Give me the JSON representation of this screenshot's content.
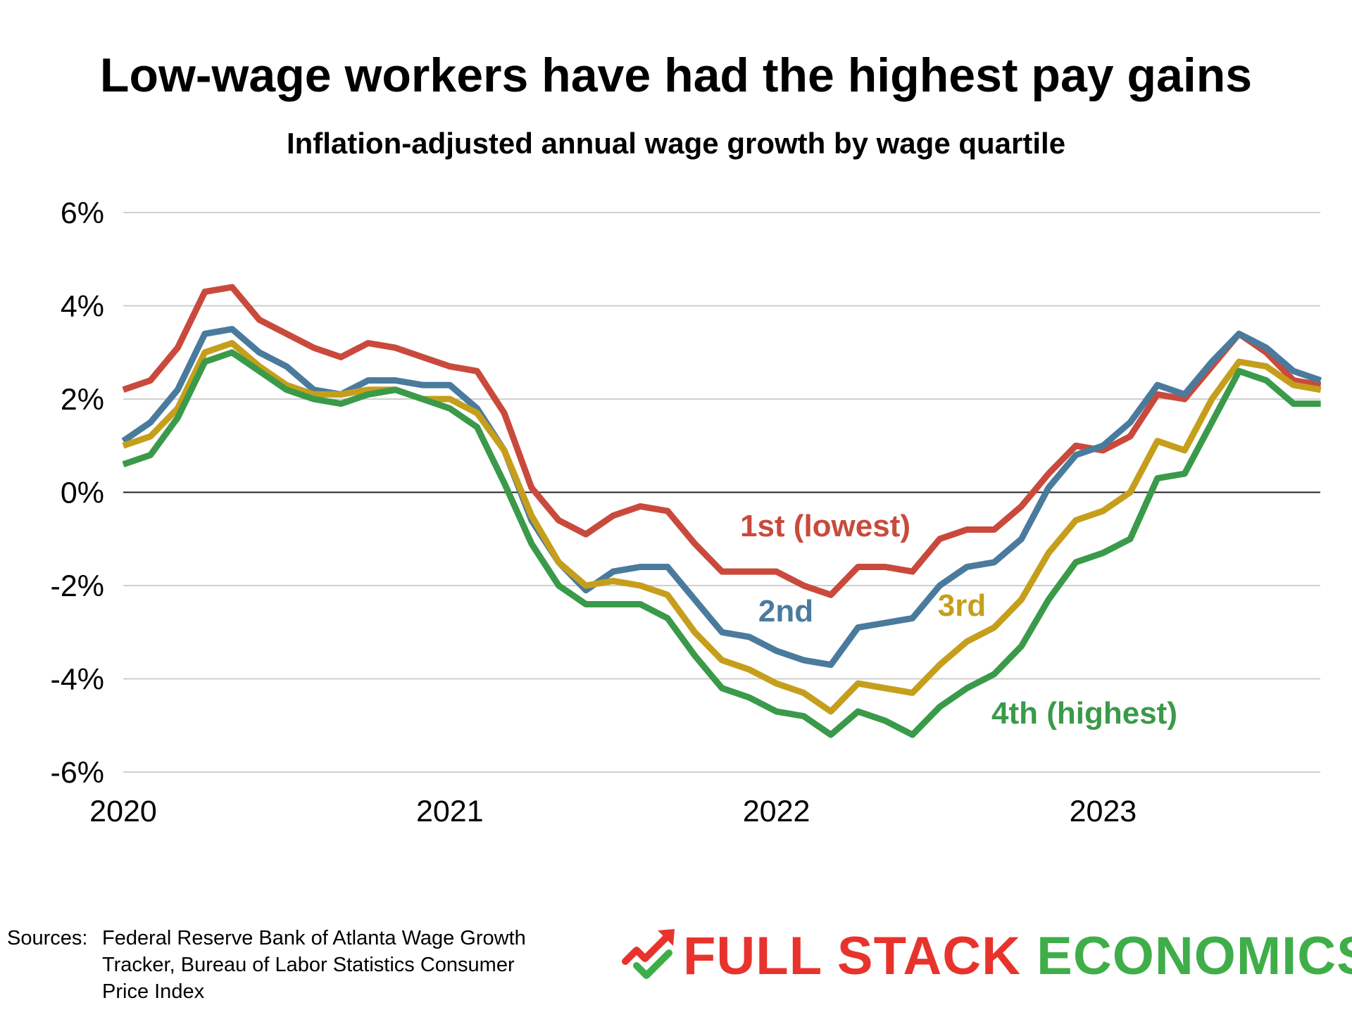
{
  "chart_data": {
    "type": "line",
    "title": "Low-wage workers have had the highest pay gains",
    "subtitle": "Inflation-adjusted annual wage growth by wage quartile",
    "xlabel": "",
    "ylabel": "",
    "x_tick_labels": [
      "2020",
      "2021",
      "2022",
      "2023"
    ],
    "y_tick_labels": [
      "6%",
      "4%",
      "2%",
      "0%",
      "-2%",
      "-4%",
      "-6%"
    ],
    "y_ticks": [
      6,
      4,
      2,
      0,
      -2,
      -4,
      -6
    ],
    "ylim": [
      -6,
      6
    ],
    "x_start_year": 2020,
    "points_per_year": 12,
    "grid": true,
    "legend": "inline labels",
    "series": [
      {
        "name": "1st (lowest)",
        "color": "#c94a3c",
        "values": [
          2.2,
          2.4,
          3.1,
          4.3,
          4.4,
          3.7,
          3.4,
          3.1,
          2.9,
          3.2,
          3.1,
          2.9,
          2.7,
          2.6,
          1.7,
          0.1,
          -0.6,
          -0.9,
          -0.5,
          -0.3,
          -0.4,
          -1.1,
          -1.7,
          -1.7,
          -1.7,
          -2.0,
          -2.2,
          -1.6,
          -1.6,
          -1.7,
          -1.0,
          -0.8,
          -0.8,
          -0.3,
          0.4,
          1.0,
          0.9,
          1.2,
          2.1,
          2.0,
          2.7,
          3.4,
          3.0,
          2.4,
          2.3
        ]
      },
      {
        "name": "2nd",
        "color": "#4a7b9d",
        "values": [
          1.1,
          1.5,
          2.2,
          3.4,
          3.5,
          3.0,
          2.7,
          2.2,
          2.1,
          2.4,
          2.4,
          2.3,
          2.3,
          1.8,
          0.9,
          -0.6,
          -1.5,
          -2.1,
          -1.7,
          -1.6,
          -1.6,
          -2.3,
          -3.0,
          -3.1,
          -3.4,
          -3.6,
          -3.7,
          -2.9,
          -2.8,
          -2.7,
          -2.0,
          -1.6,
          -1.5,
          -1.0,
          0.1,
          0.8,
          1.0,
          1.5,
          2.3,
          2.1,
          2.8,
          3.4,
          3.1,
          2.6,
          2.4
        ]
      },
      {
        "name": "3rd",
        "color": "#c59f1c",
        "values": [
          1.0,
          1.2,
          1.8,
          3.0,
          3.2,
          2.7,
          2.3,
          2.1,
          2.1,
          2.2,
          2.2,
          2.0,
          2.0,
          1.7,
          0.9,
          -0.5,
          -1.5,
          -2.0,
          -1.9,
          -2.0,
          -2.2,
          -3.0,
          -3.6,
          -3.8,
          -4.1,
          -4.3,
          -4.7,
          -4.1,
          -4.2,
          -4.3,
          -3.7,
          -3.2,
          -2.9,
          -2.3,
          -1.3,
          -0.6,
          -0.4,
          0.0,
          1.1,
          0.9,
          2.0,
          2.8,
          2.7,
          2.3,
          2.2
        ]
      },
      {
        "name": "4th (highest)",
        "color": "#3a9a4a",
        "values": [
          0.6,
          0.8,
          1.6,
          2.8,
          3.0,
          2.6,
          2.2,
          2.0,
          1.9,
          2.1,
          2.2,
          2.0,
          1.8,
          1.4,
          0.2,
          -1.1,
          -2.0,
          -2.4,
          -2.4,
          -2.4,
          -2.7,
          -3.5,
          -4.2,
          -4.4,
          -4.7,
          -4.8,
          -5.2,
          -4.7,
          -4.9,
          -5.2,
          -4.6,
          -4.2,
          -3.9,
          -3.3,
          -2.3,
          -1.5,
          -1.3,
          -1.0,
          0.3,
          0.4,
          1.5,
          2.6,
          2.4,
          1.9,
          1.9
        ]
      }
    ]
  },
  "footer": {
    "sources_label": "Sources:",
    "sources_lines": [
      "Federal Reserve Bank of Atlanta Wage Growth",
      "Tracker, Bureau of Labor Statistics Consumer",
      "Price Index"
    ]
  },
  "logo": {
    "word_red": "FULL STACK",
    "word_green": "ECONOMICS",
    "red_color": "#e8332d",
    "green_color": "#3fae49"
  }
}
